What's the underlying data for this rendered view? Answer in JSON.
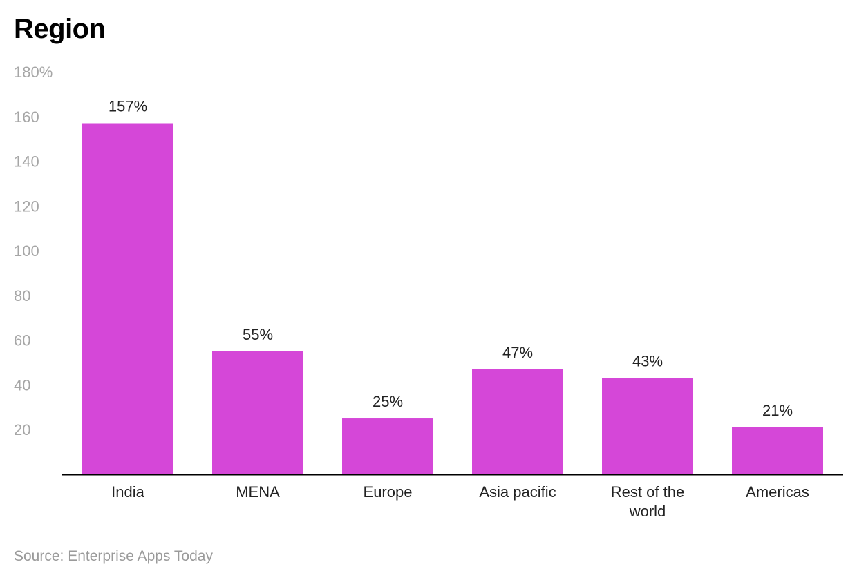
{
  "title": "Region",
  "source": "Source: Enterprise Apps Today",
  "colors": {
    "bar": "#d547d8",
    "axis": "#000000",
    "tick_text": "#a6a6a6",
    "label_text": "#222222"
  },
  "chart_data": {
    "type": "bar",
    "title": "Region",
    "categories": [
      "India",
      "MENA",
      "Europe",
      "Asia pacific",
      "Rest of the world",
      "Americas"
    ],
    "category_labels": [
      [
        "India"
      ],
      [
        "MENA"
      ],
      [
        "Europe"
      ],
      [
        "Asia pacific"
      ],
      [
        "Rest of the",
        "world"
      ],
      [
        "Americas"
      ]
    ],
    "values": [
      157,
      55,
      25,
      47,
      43,
      21
    ],
    "data_labels": [
      "157%",
      "55%",
      "25%",
      "47%",
      "43%",
      "21%"
    ],
    "ylim": [
      0,
      180
    ],
    "y_ticks": [
      20,
      40,
      60,
      80,
      100,
      120,
      140,
      160,
      180
    ],
    "y_tick_labels": [
      "20",
      "40",
      "60",
      "80",
      "100",
      "120",
      "140",
      "160",
      "180%"
    ],
    "xlabel": "",
    "ylabel": "",
    "grid": false,
    "legend": "none"
  }
}
